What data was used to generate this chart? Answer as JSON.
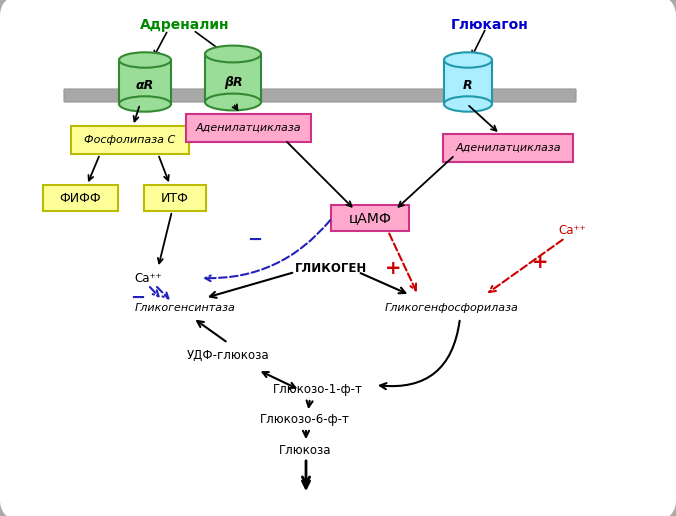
{
  "bg_color": "#ffffff",
  "cell_edge_color": "#aaaaaa",
  "membrane_color": "#999999",
  "title_adrenalin": "Адреналин",
  "title_glucagon": "Глюкагон",
  "receptor_aR_label": "αR",
  "receptor_bR_label": "βR",
  "receptor_R_label": "R",
  "adenylat_left_label": "Аденилатциклаза",
  "adenylat_right_label": "Аденилатциклаза",
  "fosfolipaza_label": "Фосфолипаза C",
  "fifph_label": "ФИФФ",
  "itf_label": "ИТФ",
  "cAMF_label": "цАМФ",
  "glikogen_label": "ГЛИКОГЕН",
  "glikogen_sintaza_label": "Гликогенсинтаза",
  "glikogen_fosforilaza_label": "Гликогенфосфорилаза",
  "udf_label": "УДФ-глюкоза",
  "glu1_label": "Глюкозо-1-ф-т",
  "glu6_label": "Глюкозо-6-ф-т",
  "glu_label": "Глюкоза",
  "ca_left": "Ca⁺⁺",
  "ca_right": "Ca⁺⁺",
  "plus": "+",
  "minus": "−",
  "yellow_fc": "#ffff99",
  "yellow_ec": "#bbbb00",
  "pink_fc": "#ffaacc",
  "pink_ec": "#cc3388",
  "pink2_fc": "#ffbbdd",
  "cyan_fc": "#aaeeff",
  "cyan_ec": "#2299aa",
  "green_fc": "#99dd99",
  "green_ec": "#338833",
  "red_col": "#cc0000",
  "blue_col": "#2222bb",
  "black_col": "#000000",
  "gray_col": "#aaaaaa"
}
